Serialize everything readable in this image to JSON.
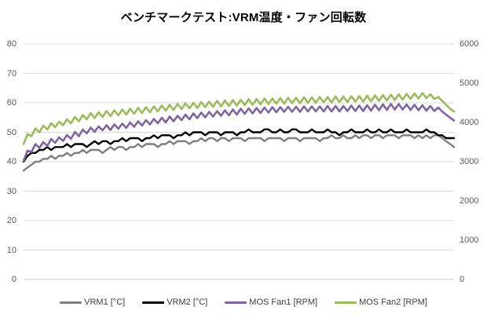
{
  "title": "ベンチマークテスト:VRM温度・ファン回転数",
  "colors": {
    "background": "#FFFFFF",
    "gridline": "#D9D9D9",
    "axis_line": "#D0D0D0",
    "tick_label": "#595959",
    "title_text": "#000000"
  },
  "chart_data": {
    "type": "line",
    "title": "ベンチマークテスト:VRM温度・ファン回転数",
    "xlabel": "",
    "x_tick_labels_visible": false,
    "grid": true,
    "legend_position": "bottom",
    "left_axis": {
      "min": 0,
      "max": 80,
      "tick_step": 10,
      "ticks": [
        80,
        70,
        60,
        50,
        40,
        30,
        20,
        10,
        0
      ]
    },
    "right_axis": {
      "min": 0,
      "max": 6000,
      "tick_step": 1000,
      "ticks": [
        6000,
        5000,
        4000,
        3000,
        2000,
        1000,
        0
      ]
    },
    "series": [
      {
        "name": "VRM1 [°C]",
        "axis": "left",
        "color": "#7F7F7F",
        "stroke_width": 2.4,
        "values": [
          37,
          38,
          39,
          40,
          40,
          41,
          41,
          42,
          41,
          42,
          42,
          43,
          42,
          43,
          43,
          44,
          43,
          44,
          44,
          44,
          43,
          44,
          45,
          44,
          45,
          45,
          44,
          45,
          45,
          46,
          45,
          46,
          46,
          46,
          45,
          46,
          46,
          47,
          46,
          47,
          47,
          47,
          46,
          47,
          47,
          48,
          47,
          48,
          48,
          47,
          48,
          48,
          47,
          48,
          48,
          48,
          47,
          48,
          48,
          48,
          48,
          47,
          48,
          48,
          48,
          48,
          47,
          48,
          48,
          48,
          47,
          48,
          48,
          48,
          48,
          47,
          48,
          48,
          49,
          48,
          48,
          49,
          48,
          48,
          49,
          48,
          49,
          49,
          48,
          49,
          49,
          48,
          49,
          49,
          49,
          48,
          49,
          49,
          49,
          48,
          49,
          48,
          49,
          48,
          49,
          49,
          48,
          47,
          46,
          45
        ]
      },
      {
        "name": "VRM2 [°C]",
        "axis": "left",
        "color": "#000000",
        "stroke_width": 2.4,
        "values": [
          40,
          42,
          43,
          43,
          44,
          44,
          45,
          44,
          45,
          45,
          45,
          46,
          45,
          46,
          46,
          46,
          45,
          46,
          47,
          46,
          47,
          47,
          46,
          47,
          47,
          48,
          47,
          48,
          48,
          48,
          47,
          48,
          48,
          49,
          48,
          49,
          49,
          49,
          48,
          49,
          49,
          50,
          49,
          50,
          50,
          50,
          49,
          50,
          50,
          50,
          49,
          50,
          50,
          50,
          49,
          50,
          50,
          51,
          50,
          50,
          50,
          51,
          51,
          50,
          50,
          51,
          50,
          50,
          51,
          51,
          50,
          50,
          50,
          51,
          50,
          50,
          50,
          51,
          50,
          50,
          49,
          50,
          50,
          51,
          50,
          50,
          50,
          51,
          50,
          50,
          51,
          50,
          50,
          51,
          50,
          50,
          50,
          51,
          50,
          50,
          50,
          50,
          51,
          50,
          50,
          49,
          49,
          48,
          48,
          48
        ]
      },
      {
        "name": "MOS Fan1 [RPM]",
        "axis": "right",
        "color": "#8064A2",
        "stroke_width": 2.6,
        "values": [
          3020,
          3280,
          3250,
          3450,
          3350,
          3500,
          3400,
          3580,
          3480,
          3620,
          3530,
          3680,
          3580,
          3760,
          3650,
          3820,
          3720,
          3870,
          3760,
          3900,
          3800,
          3930,
          3810,
          3950,
          3840,
          3970,
          3860,
          4000,
          3890,
          4030,
          3920,
          4060,
          3950,
          4090,
          3980,
          4120,
          4000,
          4150,
          4030,
          4170,
          4060,
          4200,
          4080,
          4230,
          4110,
          4250,
          4130,
          4270,
          4150,
          4290,
          4170,
          4310,
          4180,
          4330,
          4200,
          4350,
          4220,
          4360,
          4230,
          4370,
          4240,
          4380,
          4250,
          4390,
          4260,
          4390,
          4270,
          4400,
          4270,
          4400,
          4270,
          4410,
          4280,
          4410,
          4280,
          4410,
          4280,
          4420,
          4280,
          4420,
          4280,
          4420,
          4290,
          4430,
          4290,
          4430,
          4290,
          4440,
          4300,
          4450,
          4310,
          4460,
          4320,
          4470,
          4330,
          4470,
          4330,
          4460,
          4320,
          4450,
          4310,
          4440,
          4300,
          4420,
          4290,
          4380,
          4280,
          4200,
          4120,
          4050
        ]
      },
      {
        "name": "MOS Fan2 [RPM]",
        "axis": "right",
        "color": "#9BBB59",
        "stroke_width": 2.6,
        "values": [
          3450,
          3700,
          3650,
          3850,
          3750,
          3920,
          3820,
          3980,
          3880,
          4020,
          3930,
          4080,
          3980,
          4140,
          4030,
          4190,
          4080,
          4240,
          4110,
          4260,
          4140,
          4290,
          4160,
          4310,
          4180,
          4330,
          4200,
          4350,
          4220,
          4370,
          4240,
          4390,
          4260,
          4410,
          4280,
          4430,
          4300,
          4450,
          4320,
          4470,
          4340,
          4490,
          4360,
          4500,
          4370,
          4520,
          4390,
          4530,
          4400,
          4550,
          4410,
          4560,
          4420,
          4570,
          4430,
          4580,
          4440,
          4590,
          4450,
          4600,
          4460,
          4610,
          4470,
          4610,
          4480,
          4620,
          4480,
          4630,
          4490,
          4630,
          4490,
          4640,
          4500,
          4640,
          4500,
          4650,
          4510,
          4650,
          4510,
          4660,
          4520,
          4660,
          4520,
          4670,
          4530,
          4670,
          4530,
          4680,
          4540,
          4690,
          4550,
          4700,
          4560,
          4710,
          4570,
          4720,
          4580,
          4730,
          4600,
          4740,
          4610,
          4750,
          4620,
          4720,
          4600,
          4650,
          4550,
          4450,
          4350,
          4280
        ]
      }
    ]
  },
  "legend": {
    "items": [
      {
        "label": "VRM1 [°C]"
      },
      {
        "label": "VRM2 [°C]"
      },
      {
        "label": "MOS Fan1 [RPM]"
      },
      {
        "label": "MOS Fan2 [RPM]"
      }
    ]
  }
}
